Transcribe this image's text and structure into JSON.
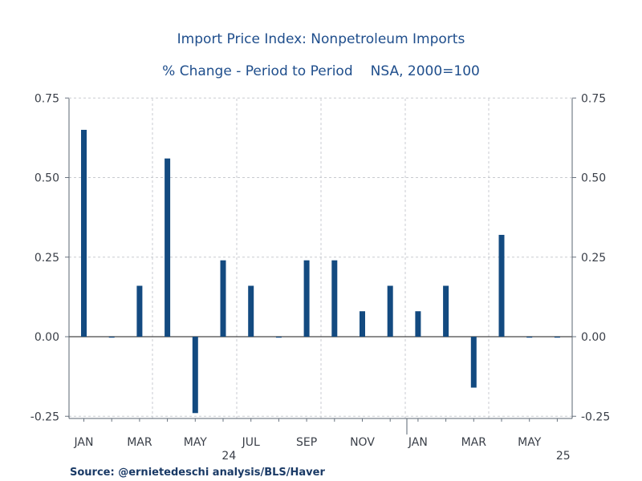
{
  "chart_data": {
    "type": "bar",
    "title": "Import Price Index: Nonpetroleum Imports",
    "subtitle_left": "% Change - Period to Period",
    "subtitle_right": "NSA, 2000=100",
    "categories": [
      "Jan 2024",
      "Feb 2024",
      "Mar 2024",
      "Apr 2024",
      "May 2024",
      "Jun 2024",
      "Jul 2024",
      "Aug 2024",
      "Sep 2024",
      "Oct 2024",
      "Nov 2024",
      "Dec 2024",
      "Jan 2025",
      "Feb 2025",
      "Mar 2025",
      "Apr 2025",
      "May 2025",
      "Jun 2025"
    ],
    "series": [
      {
        "name": "Nonpetroleum Imports % change",
        "color": "#134a80",
        "values": [
          0.65,
          0.0,
          0.16,
          0.56,
          -0.24,
          0.24,
          0.16,
          0.0,
          0.24,
          0.24,
          0.08,
          0.16,
          0.08,
          0.16,
          -0.16,
          0.32,
          0.0,
          0.0
        ]
      }
    ],
    "ylim": [
      -0.27,
      0.75
    ],
    "y_ticks": [
      "0.75",
      "0.50",
      "0.25",
      "0.00",
      "-0.25"
    ],
    "y_tick_values": [
      0.75,
      0.5,
      0.25,
      0.0,
      -0.25
    ],
    "x_tick_labels": [
      "JAN",
      "MAR",
      "MAY",
      "JUL",
      "SEP",
      "NOV",
      "JAN",
      "MAR",
      "MAY"
    ],
    "x_tick_indices": [
      0,
      2,
      4,
      6,
      8,
      10,
      12,
      14,
      16
    ],
    "year_labels": [
      {
        "label": "24",
        "index": 5.5
      },
      {
        "label": "25",
        "index": 17.5
      }
    ],
    "grid": true,
    "xlabel": "",
    "ylabel": ""
  },
  "source": "Source:  @ernietedeschi analysis/BLS/Haver"
}
